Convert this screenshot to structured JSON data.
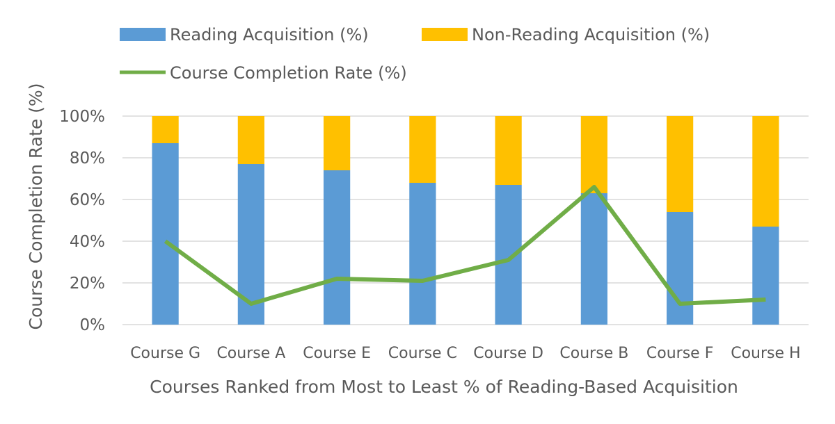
{
  "chart_data": {
    "type": "bar",
    "stacked": true,
    "title": "",
    "xlabel": "Courses Ranked from Most to Least % of Reading-Based Acquisition",
    "ylabel": "Course Completion Rate (%)",
    "ylim": [
      0,
      100
    ],
    "yticks": [
      "0%",
      "20%",
      "40%",
      "60%",
      "80%",
      "100%"
    ],
    "gridlines": true,
    "legend_position": "top",
    "categories": [
      "Course G",
      "Course A",
      "Course E",
      "Course C",
      "Course D",
      "Course B",
      "Course F",
      "Course H"
    ],
    "series": [
      {
        "name": "Reading Acquisition (%)",
        "type": "bar",
        "color": "#5B9BD5",
        "values": [
          87,
          77,
          74,
          68,
          67,
          63,
          54,
          47
        ]
      },
      {
        "name": "Non-Reading Acquisition (%)",
        "type": "bar",
        "color": "#FFC000",
        "values": [
          13,
          23,
          26,
          32,
          33,
          37,
          46,
          53
        ]
      },
      {
        "name": "Course Completion Rate (%)",
        "type": "line",
        "color": "#70AD47",
        "values": [
          40,
          10,
          22,
          21,
          31,
          66,
          10,
          12
        ]
      }
    ]
  }
}
